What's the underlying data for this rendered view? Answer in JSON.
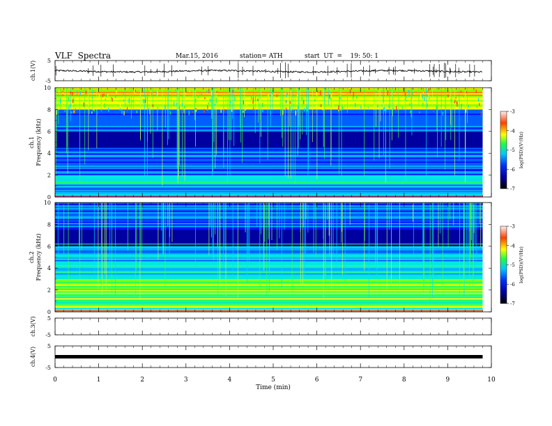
{
  "header": {
    "title": "VLF  Spectra",
    "date": "Mar.15, 2016",
    "station": "station= ATH",
    "start": "start  UT  =    19: 50: 1"
  },
  "chart_data": [
    {
      "type": "line",
      "ylabel": "ch.1(V)",
      "ylim": [
        -5,
        5
      ],
      "yticks": [
        "5",
        "-5"
      ],
      "baseline": -0.3
    },
    {
      "type": "heatmap",
      "ylabel": "ch.1\nFrequency  (kHz)",
      "ylim": [
        0,
        10
      ],
      "yticks": [
        "0",
        "2",
        "4",
        "6",
        "8",
        "10"
      ],
      "colorbar": {
        "label": "log(PSD)(V²/Hz)",
        "ticks": [
          "-3",
          "-4",
          "-5",
          "-6",
          "-7"
        ],
        "range": [
          -7,
          -3
        ]
      }
    },
    {
      "type": "heatmap",
      "ylabel": "ch.2\nFrequency  (kHz)",
      "ylim": [
        0,
        10
      ],
      "yticks": [
        "0",
        "2",
        "4",
        "6",
        "8",
        "10"
      ],
      "colorbar": {
        "label": "log(PSD)(V²/Hz)",
        "ticks": [
          "-3",
          "-4",
          "-5",
          "-6",
          "-7"
        ],
        "range": [
          -7,
          -3
        ]
      }
    },
    {
      "type": "line",
      "ylabel": "ch.3(V)",
      "ylim": [
        -5,
        5
      ],
      "yticks": [
        "5",
        "-5"
      ],
      "baseline": null
    },
    {
      "type": "line",
      "ylabel": "ch.4(V)",
      "ylim": [
        -5,
        5
      ],
      "yticks": [
        "5",
        "-5"
      ],
      "baseline": 0
    }
  ],
  "xaxis": {
    "label": "Time  (min)",
    "range": [
      0,
      10
    ],
    "ticks": [
      "0",
      "1",
      "2",
      "3",
      "4",
      "5",
      "6",
      "7",
      "8",
      "9",
      "10"
    ],
    "data_end": 9.8
  },
  "colors": {
    "frame": "#000000",
    "low": "#000000",
    "mid": "#0000ff",
    "high": "#ff0000"
  }
}
